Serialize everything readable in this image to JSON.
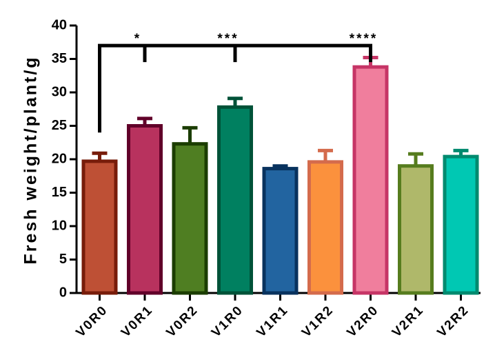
{
  "chart_data": {
    "type": "bar",
    "ylabel": "Fresh weight/plant/g",
    "xlabel": "",
    "ylim": [
      0,
      40
    ],
    "yticks": [
      0,
      5,
      10,
      15,
      20,
      25,
      30,
      35,
      40
    ],
    "yticks_labels": [
      "0",
      "5",
      "10",
      "15",
      "20",
      "25",
      "30",
      "35",
      "40"
    ],
    "categories": [
      "V0R0",
      "V0R1",
      "V0R2",
      "V1R0",
      "V1R1",
      "V1R2",
      "V2R0",
      "V2R1",
      "V2R2"
    ],
    "values": [
      19.7,
      25.0,
      22.3,
      27.8,
      18.6,
      19.6,
      33.8,
      19.0,
      20.4
    ],
    "errors": [
      1.2,
      1.1,
      2.4,
      1.3,
      0.4,
      1.7,
      1.4,
      1.8,
      0.9
    ],
    "fill_colors": [
      "#be5035",
      "#b8325e",
      "#4f7e22",
      "#008060",
      "#2264a0",
      "#fb913d",
      "#f07e9d",
      "#afb86a",
      "#00c8b3"
    ],
    "edge_colors": [
      "#771c0a",
      "#610029",
      "#1b3d00",
      "#005238",
      "#08325e",
      "#d46b4c",
      "#c63566",
      "#567c1e",
      "#008a6f"
    ],
    "significance": {
      "reference": "V0R0",
      "comparisons": [
        {
          "target": "V0R1",
          "label": "*"
        },
        {
          "target": "V1R0",
          "label": "***"
        },
        {
          "target": "V2R0",
          "label": "****"
        }
      ]
    },
    "grid": false,
    "legend": "none"
  }
}
